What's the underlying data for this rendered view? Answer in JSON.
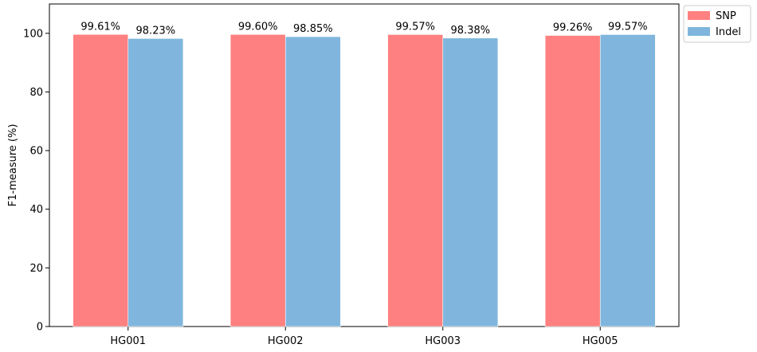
{
  "chart_data": {
    "type": "bar",
    "categories": [
      "HG001",
      "HG002",
      "HG003",
      "HG005"
    ],
    "series": [
      {
        "name": "SNP",
        "values": [
          99.61,
          99.6,
          99.57,
          99.26
        ],
        "labels": [
          "99.61%",
          "99.60%",
          "99.57%",
          "99.26%"
        ],
        "color": "#ff8080"
      },
      {
        "name": "Indel",
        "values": [
          98.23,
          98.85,
          98.38,
          99.57
        ],
        "labels": [
          "98.23%",
          "98.85%",
          "98.38%",
          "99.57%"
        ],
        "color": "#80b6dd"
      }
    ],
    "ylabel": "F1-measure (%)",
    "xlabel": "",
    "ylim": [
      0,
      110
    ],
    "yticks": [
      0,
      20,
      40,
      60,
      80,
      100
    ],
    "grid": false,
    "legend_position": "outside-top-right"
  }
}
